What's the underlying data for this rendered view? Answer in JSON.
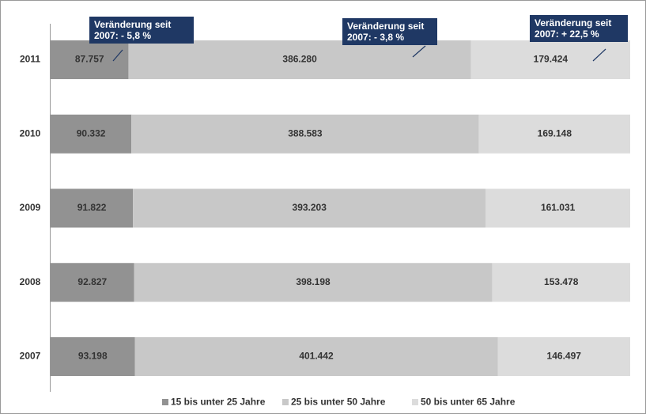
{
  "chart_data": {
    "type": "stacked-bar-100",
    "orientation": "horizontal",
    "categories": [
      "2011",
      "2010",
      "2009",
      "2008",
      "2007"
    ],
    "series": [
      {
        "name": "15 bis unter 25 Jahre",
        "color": "#929292",
        "values": [
          87757,
          90332,
          91822,
          92827,
          93198
        ],
        "value_labels": [
          "87.757",
          "90.332",
          "91.822",
          "92.827",
          "93.198"
        ]
      },
      {
        "name": "25 bis unter 50 Jahre",
        "color": "#c8c8c8",
        "values": [
          386280,
          388583,
          393203,
          398198,
          401442
        ],
        "value_labels": [
          "386.280",
          "388.583",
          "393.203",
          "398.198",
          "401.442"
        ]
      },
      {
        "name": "50 bis unter 65 Jahre",
        "color": "#dcdcdc",
        "values": [
          179424,
          169148,
          161031,
          153478,
          146497
        ],
        "value_labels": [
          "179.424",
          "169.148",
          "161.031",
          "153.478",
          "146.497"
        ]
      }
    ],
    "annotations": [
      "Veränderung seit 2007: - 5,8 %",
      "Veränderung seit 2007: - 3,8 %",
      "Veränderung seit 2007: + 22,5 %"
    ],
    "legend": "bottom"
  }
}
